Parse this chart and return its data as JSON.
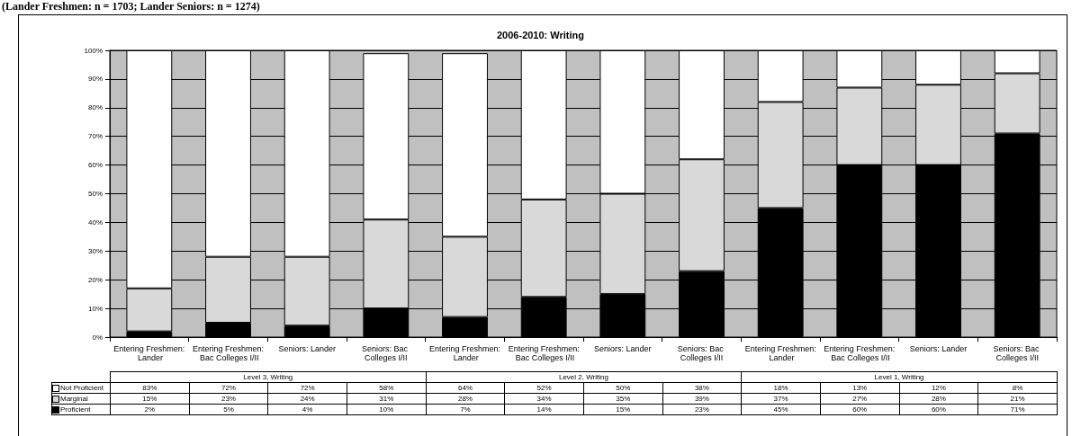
{
  "chart_data": {
    "type": "bar",
    "title": "2006-2010: Writing",
    "annotations": [
      "(Lander Freshmen: n = 1703; Lander Seniors: n = 1274)",
      "Level 3, Writing",
      "Level 2, Writing",
      "Level 1, Writing"
    ],
    "categories": [
      "Entering Freshmen: Lander",
      "Entering Freshmen: Bac Colleges I/II",
      "Seniors: Lander",
      "Seniors: Bac Colleges I/II",
      "Entering Freshmen: Lander",
      "Entering Freshmen: Bac Colleges I/II",
      "Seniors: Lander",
      "Seniors: Bac Colleges I/II",
      "Entering Freshmen: Lander",
      "Entering Freshmen: Bac Colleges I/II",
      "Seniors: Lander",
      "Seniors: Bac Colleges I/II"
    ],
    "series": [
      {
        "name": "Proficient",
        "color": "#000000",
        "values": [
          2,
          5,
          4,
          10,
          7,
          14,
          15,
          23,
          45,
          60,
          60,
          71
        ],
        "value_labels": [
          "2%",
          "5%",
          "4%",
          "10%",
          "7%",
          "14%",
          "15%",
          "23%",
          "45%",
          "60%",
          "60%",
          "71%"
        ]
      },
      {
        "name": "Marginal",
        "color": "#d9d9d9",
        "values": [
          15,
          23,
          24,
          31,
          28,
          34,
          35,
          39,
          37,
          27,
          28,
          21
        ],
        "value_labels": [
          "15%",
          "23%",
          "24%",
          "31%",
          "28%",
          "34%",
          "35%",
          "39%",
          "37%",
          "27%",
          "28%",
          "21%"
        ]
      },
      {
        "name": "Not Proficient",
        "color": "#ffffff",
        "values": [
          83,
          72,
          72,
          58,
          64,
          52,
          50,
          38,
          18,
          13,
          12,
          8
        ],
        "value_labels": [
          "83%",
          "72%",
          "72%",
          "58%",
          "64%",
          "52%",
          "50%",
          "38%",
          "18%",
          "13%",
          "12%",
          "8%"
        ]
      }
    ],
    "stacked": true,
    "ylim": [
      0,
      100
    ],
    "yticks": [
      {
        "value": 0,
        "label": "0%"
      },
      {
        "value": 10,
        "label": "10%"
      },
      {
        "value": 20,
        "label": "20%"
      },
      {
        "value": 30,
        "label": "30%"
      },
      {
        "value": 40,
        "label": "40%"
      },
      {
        "value": 50,
        "label": "50%"
      },
      {
        "value": 60,
        "label": "60%"
      },
      {
        "value": 70,
        "label": "70%"
      },
      {
        "value": 80,
        "label": "80%"
      },
      {
        "value": 90,
        "label": "90%"
      },
      {
        "value": 100,
        "label": "100%"
      }
    ],
    "grid": "y",
    "legend": "bottom left"
  }
}
